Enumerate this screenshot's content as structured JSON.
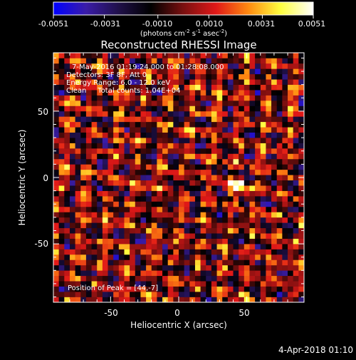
{
  "chart_data": {
    "type": "heatmap",
    "title": "Reconstructed RHESSI Image",
    "xlabel": "Heliocentric X (arcsec)",
    "ylabel": "Heliocentric Y (arcsec)",
    "xlim": [
      -92,
      92
    ],
    "ylim": [
      -94,
      94
    ],
    "xticks": [
      -50,
      0,
      50
    ],
    "yticks": [
      -50,
      0,
      50
    ],
    "colorbar": {
      "min": -0.0051,
      "max": 0.0051,
      "ticks": [
        "-0.0051",
        "-0.0031",
        "-0.0010",
        "0.0010",
        "0.0031",
        "0.0051"
      ],
      "units_main": "(photons cm",
      "units_exp1": "-2",
      "units_mid1": " s",
      "units_exp2": "-1",
      "units_mid2": " asec",
      "units_exp3": "-2",
      "units_end": ")",
      "colors": [
        "#0000ff",
        "#3a1ca8",
        "#20104a",
        "#000000",
        "#7a1010",
        "#e01818",
        "#ff8a10",
        "#ffff40",
        "#ffffff"
      ]
    },
    "pixel_size_arcsec": 4,
    "peak": [
      44,
      -7
    ],
    "annotations": [
      "7-May-2016 01:19:24.000 to 01:28:08.000",
      "Detectors: 3F 8F, Att 0",
      "Energy Range: 6.0 - 12.0 keV",
      "Clean     Total counts: 1.04E+04",
      "Position of Peak = [44,-7]"
    ]
  },
  "footer": {
    "date": "4-Apr-2018 01:10"
  }
}
